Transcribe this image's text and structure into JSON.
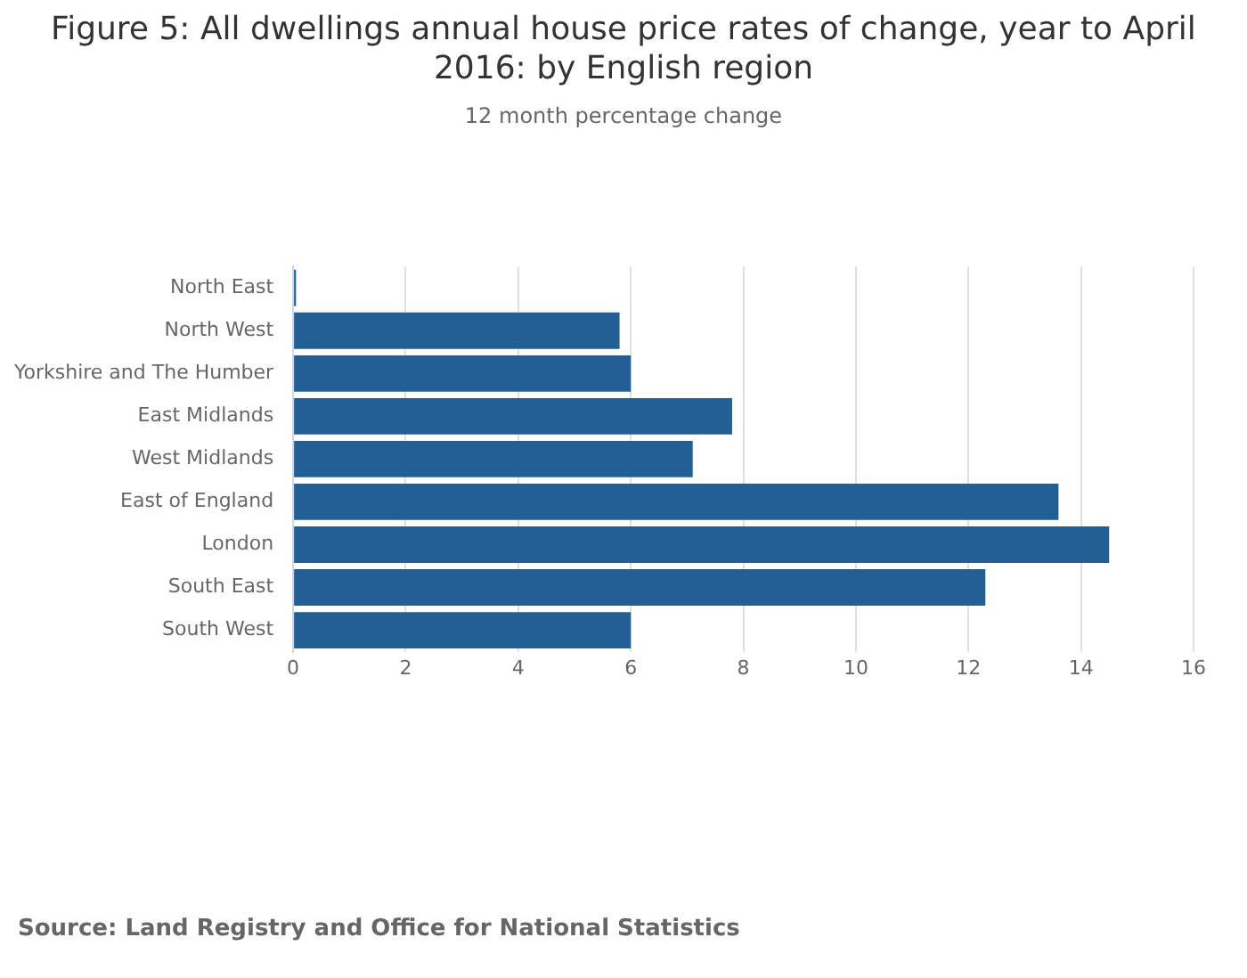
{
  "chart_data": {
    "type": "bar",
    "orientation": "horizontal",
    "title": "Figure 5: All dwellings annual house price rates of change, year to April 2016: by English region",
    "subtitle": "12 month percentage change",
    "categories": [
      "North East",
      "North West",
      "Yorkshire and The Humber",
      "East Midlands",
      "West Midlands",
      "East of England",
      "London",
      "South East",
      "South West"
    ],
    "values": [
      0.05,
      5.8,
      6.0,
      7.8,
      7.1,
      13.6,
      14.5,
      12.3,
      6.0
    ],
    "color": "#215f95",
    "xlim": [
      0,
      16
    ],
    "xticks": [
      0,
      2,
      4,
      6,
      8,
      10,
      12,
      14,
      16
    ],
    "grid": "x",
    "legend": false,
    "annotations": [
      "Source: Land Registry and Office for National Statistics"
    ]
  }
}
